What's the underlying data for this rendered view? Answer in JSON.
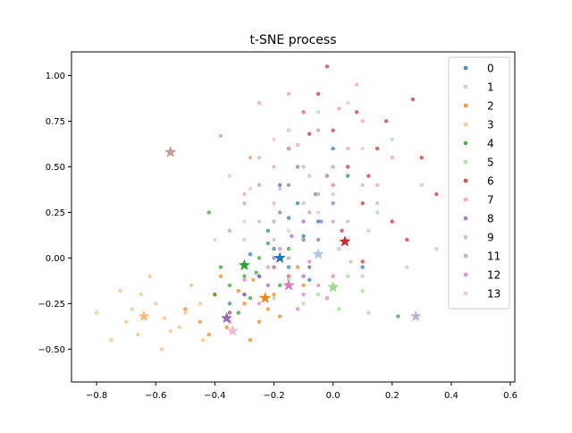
{
  "chart_data": {
    "type": "scatter",
    "title": "t-SNE process",
    "xlabel": "",
    "ylabel": "",
    "xlim": [
      -0.885,
      0.615
    ],
    "ylim": [
      -0.68,
      1.13
    ],
    "xticks": [
      -0.8,
      -0.6,
      -0.4,
      -0.2,
      0.0,
      0.2,
      0.4,
      0.6
    ],
    "xtick_labels": [
      "−0.8",
      "−0.6",
      "−0.4",
      "−0.2",
      "0.0",
      "0.2",
      "0.4",
      "0.6"
    ],
    "yticks": [
      -0.5,
      -0.25,
      0.0,
      0.25,
      0.5,
      0.75,
      1.0
    ],
    "ytick_labels": [
      "−0.50",
      "−0.25",
      "0.00",
      "0.25",
      "0.50",
      "0.75",
      "1.00"
    ],
    "grid": false,
    "legend_position": "top-right",
    "series": [
      {
        "name": "0",
        "color": "#1f77b4",
        "centroid": [
          -0.18,
          0.0
        ],
        "points": [
          [
            -0.2,
            0.05
          ],
          [
            -0.15,
            -0.05
          ],
          [
            -0.1,
            0.1
          ],
          [
            -0.25,
            -0.1
          ],
          [
            -0.05,
            0.2
          ],
          [
            -0.3,
            -0.2
          ],
          [
            0.05,
            0.45
          ],
          [
            -0.12,
            0.3
          ],
          [
            -0.22,
            0.15
          ],
          [
            -0.08,
            -0.12
          ],
          [
            0.1,
            -0.05
          ],
          [
            -0.35,
            -0.25
          ],
          [
            -0.18,
            0.4
          ],
          [
            0.0,
            0.6
          ],
          [
            -0.28,
            0.02
          ],
          [
            -0.1,
            0.12
          ],
          [
            -0.15,
            0.22
          ]
        ]
      },
      {
        "name": "1",
        "color": "#aec7e8",
        "centroid": [
          -0.05,
          0.02
        ],
        "points": [
          [
            0.2,
            0.65
          ],
          [
            -0.1,
            0.5
          ],
          [
            0.05,
            0.1
          ],
          [
            -0.2,
            0.3
          ],
          [
            0.3,
            0.4
          ],
          [
            -0.3,
            0.1
          ],
          [
            0.1,
            -0.1
          ],
          [
            0.15,
            0.25
          ],
          [
            -0.05,
            0.8
          ],
          [
            0.45,
            0.2
          ],
          [
            -0.15,
            0.7
          ],
          [
            0.25,
            -0.05
          ],
          [
            0.0,
            0.35
          ],
          [
            0.35,
            0.05
          ],
          [
            -0.25,
            0.55
          ],
          [
            0.12,
            0.15
          ]
        ]
      },
      {
        "name": "2",
        "color": "#ff7f0e",
        "centroid": [
          -0.23,
          -0.22
        ],
        "points": [
          [
            -0.3,
            -0.25
          ],
          [
            -0.35,
            -0.3
          ],
          [
            -0.2,
            -0.2
          ],
          [
            -0.25,
            -0.35
          ],
          [
            -0.4,
            -0.2
          ],
          [
            -0.15,
            -0.1
          ],
          [
            -0.45,
            -0.35
          ],
          [
            -0.5,
            -0.28
          ],
          [
            -0.28,
            -0.45
          ],
          [
            -0.1,
            -0.15
          ],
          [
            -0.38,
            -0.1
          ],
          [
            -0.22,
            -0.28
          ],
          [
            -0.32,
            -0.18
          ],
          [
            -0.42,
            -0.42
          ],
          [
            -0.18,
            -0.32
          ],
          [
            -0.27,
            -0.12
          ],
          [
            -0.36,
            -0.38
          ],
          [
            -0.12,
            -0.05
          ]
        ]
      },
      {
        "name": "3",
        "color": "#ffbb78",
        "centroid": [
          -0.64,
          -0.32
        ],
        "points": [
          [
            -0.6,
            -0.25
          ],
          [
            -0.7,
            -0.35
          ],
          [
            -0.55,
            -0.4
          ],
          [
            -0.65,
            -0.2
          ],
          [
            -0.5,
            -0.3
          ],
          [
            -0.75,
            -0.45
          ],
          [
            -0.45,
            -0.25
          ],
          [
            -0.58,
            -0.5
          ],
          [
            -0.8,
            -0.3
          ],
          [
            -0.48,
            -0.15
          ],
          [
            -0.62,
            -0.1
          ],
          [
            -0.68,
            -0.28
          ],
          [
            -0.52,
            -0.38
          ],
          [
            -0.72,
            -0.18
          ],
          [
            -0.57,
            -0.33
          ],
          [
            -0.44,
            -0.45
          ],
          [
            -0.66,
            -0.42
          ]
        ]
      },
      {
        "name": "4",
        "color": "#2ca02c",
        "centroid": [
          -0.3,
          -0.04
        ],
        "points": [
          [
            -0.3,
            -0.1
          ],
          [
            -0.25,
            0.0
          ],
          [
            -0.35,
            -0.15
          ],
          [
            -0.2,
            -0.05
          ],
          [
            -0.4,
            -0.2
          ],
          [
            -0.15,
            0.05
          ],
          [
            -0.28,
            -0.22
          ],
          [
            -0.38,
            -0.05
          ],
          [
            -0.22,
            0.08
          ],
          [
            -0.32,
            -0.3
          ],
          [
            0.22,
            -0.32
          ],
          [
            -0.42,
            0.25
          ],
          [
            -0.18,
            -0.15
          ],
          [
            -0.26,
            -0.08
          ]
        ]
      },
      {
        "name": "5",
        "color": "#98df8a",
        "centroid": [
          0.0,
          -0.16
        ],
        "points": [
          [
            0.0,
            -0.15
          ],
          [
            -0.05,
            -0.2
          ],
          [
            0.05,
            -0.1
          ],
          [
            -0.1,
            -0.25
          ],
          [
            0.1,
            -0.18
          ],
          [
            -0.15,
            -0.12
          ],
          [
            0.02,
            -0.28
          ],
          [
            -0.08,
            -0.05
          ],
          [
            0.12,
            -0.3
          ],
          [
            -0.2,
            -0.22
          ],
          [
            0.06,
            -0.02
          ]
        ]
      },
      {
        "name": "6",
        "color": "#d62728",
        "centroid": [
          0.04,
          0.09
        ],
        "points": [
          [
            0.05,
            0.5
          ],
          [
            0.0,
            0.7
          ],
          [
            -0.05,
            0.9
          ],
          [
            0.1,
            0.3
          ],
          [
            0.15,
            0.6
          ],
          [
            -0.1,
            0.8
          ],
          [
            0.2,
            0.2
          ],
          [
            0.08,
            0.8
          ],
          [
            -0.02,
            1.05
          ],
          [
            0.12,
            0.45
          ],
          [
            0.25,
            0.1
          ],
          [
            -0.15,
            0.6
          ],
          [
            0.3,
            0.55
          ],
          [
            0.0,
            0.4
          ],
          [
            0.18,
            0.75
          ],
          [
            0.27,
            0.87
          ],
          [
            -0.08,
            0.68
          ],
          [
            0.03,
            0.15
          ],
          [
            0.35,
            0.35
          ],
          [
            0.1,
            -0.02
          ]
        ]
      },
      {
        "name": "7",
        "color": "#ff9896",
        "centroid": [
          -0.55,
          0.58
        ],
        "points": [
          [
            -0.1,
            0.8
          ],
          [
            0.05,
            0.6
          ],
          [
            -0.2,
            0.5
          ],
          [
            0.1,
            0.75
          ],
          [
            -0.15,
            0.9
          ],
          [
            0.0,
            0.5
          ],
          [
            -0.05,
            0.7
          ],
          [
            0.15,
            0.4
          ],
          [
            -0.25,
            0.85
          ],
          [
            0.08,
            0.95
          ],
          [
            -0.12,
            0.62
          ],
          [
            0.2,
            0.55
          ],
          [
            -0.3,
            0.35
          ],
          [
            0.02,
            0.82
          ]
        ]
      },
      {
        "name": "8",
        "color": "#9467bd",
        "centroid": [
          -0.36,
          -0.33
        ],
        "points": [
          [
            -0.1,
            0.2
          ],
          [
            -0.15,
            0.4
          ],
          [
            -0.05,
            0.1
          ],
          [
            -0.2,
            0.0
          ],
          [
            0.0,
            0.3
          ],
          [
            -0.25,
            -0.1
          ],
          [
            -0.12,
            0.5
          ],
          [
            -0.08,
            -0.05
          ],
          [
            -0.3,
            -0.2
          ],
          [
            -0.18,
            0.25
          ],
          [
            -0.02,
            0.45
          ],
          [
            -0.22,
            -0.15
          ],
          [
            -0.06,
            0.35
          ],
          [
            -0.14,
            0.12
          ],
          [
            -0.35,
            -0.3
          ],
          [
            -0.1,
            -0.1
          ],
          [
            -0.04,
            0.2
          ]
        ]
      },
      {
        "name": "9",
        "color": "#c5b0d5",
        "centroid": [
          0.28,
          -0.32
        ],
        "points": [
          [
            -0.1,
            0.3
          ],
          [
            0.0,
            0.5
          ],
          [
            -0.2,
            0.1
          ],
          [
            0.1,
            0.4
          ],
          [
            -0.15,
            0.6
          ],
          [
            0.05,
            0.2
          ],
          [
            -0.05,
            0.7
          ],
          [
            -0.25,
            0.2
          ],
          [
            0.15,
            0.3
          ],
          [
            -0.08,
            0.45
          ],
          [
            0.02,
            0.05
          ],
          [
            -0.18,
            0.38
          ]
        ]
      },
      {
        "name": "11",
        "color": "#c49c94",
        "centroid": [
          -0.55,
          0.58
        ],
        "points": [
          [
            -0.2,
            0.2
          ],
          [
            -0.1,
            0.1
          ],
          [
            -0.3,
            0.3
          ],
          [
            0.0,
            0.2
          ],
          [
            -0.15,
            0.0
          ],
          [
            -0.25,
            0.4
          ],
          [
            -0.05,
            0.35
          ],
          [
            -0.35,
            0.15
          ],
          [
            -0.12,
            0.5
          ],
          [
            -0.22,
            -0.05
          ],
          [
            -0.08,
            0.25
          ],
          [
            -0.28,
            0.55
          ],
          [
            -0.38,
            0.67
          ]
        ]
      },
      {
        "name": "12",
        "color": "#e377c2",
        "centroid": [
          -0.15,
          -0.15
        ],
        "points": [
          [
            -0.15,
            -0.1
          ],
          [
            -0.1,
            -0.2
          ],
          [
            -0.2,
            -0.05
          ],
          [
            -0.05,
            -0.15
          ],
          [
            -0.25,
            -0.25
          ],
          [
            0.0,
            -0.1
          ],
          [
            -0.3,
            -0.12
          ],
          [
            -0.12,
            -0.28
          ],
          [
            -0.18,
            0.05
          ],
          [
            -0.08,
            -0.02
          ],
          [
            -0.35,
            -0.35
          ],
          [
            -0.02,
            -0.22
          ]
        ]
      },
      {
        "name": "13",
        "color": "#f7b6d2",
        "centroid": [
          -0.34,
          -0.4
        ],
        "points": [
          [
            -0.2,
            0.3
          ],
          [
            -0.1,
            0.5
          ],
          [
            -0.3,
            0.2
          ],
          [
            0.0,
            0.4
          ],
          [
            -0.25,
            0.55
          ],
          [
            -0.15,
            0.15
          ],
          [
            0.1,
            0.6
          ],
          [
            -0.35,
            0.45
          ],
          [
            -0.05,
            0.25
          ],
          [
            -0.4,
            0.1
          ],
          [
            -0.2,
            0.65
          ],
          [
            0.05,
            0.85
          ],
          [
            -0.28,
            0.38
          ]
        ]
      }
    ]
  }
}
